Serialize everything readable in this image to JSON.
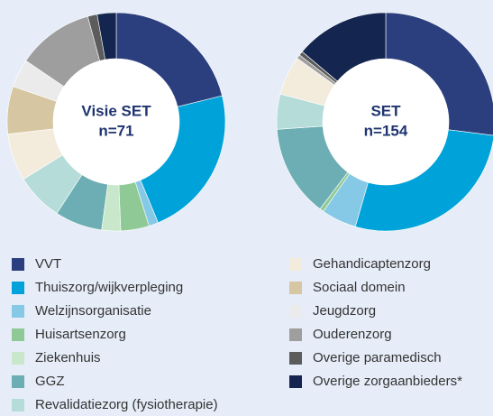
{
  "legend": {
    "categories": [
      "VVT",
      "Thuiszorg/wijkverpleging",
      "Welzijnsorganisatie",
      "Huisartsenzorg",
      "Ziekenhuis",
      "GGZ",
      "Revalidatiezorg (fysiotherapie)",
      "Gehandicaptenzorg",
      "Sociaal domein",
      "Jeugdzorg",
      "Ouderenzorg",
      "Overige paramedisch",
      "Overige zorgaanbieders*"
    ],
    "colors": [
      "#2b3f7e",
      "#00a3d9",
      "#86c9e6",
      "#8fca96",
      "#c9e8cb",
      "#6caeb3",
      "#b5dcd9",
      "#f3ecdc",
      "#d6c7a2",
      "#ebebeb",
      "#9e9e9e",
      "#5c5c5c",
      "#14264f"
    ]
  },
  "chart_data": [
    {
      "type": "pie",
      "title": "Visie SET",
      "subtitle": "n=71",
      "values": [
        21.1,
        22.5,
        1.4,
        4.2,
        2.8,
        7,
        7,
        7,
        7,
        4.2,
        11.3,
        1.4,
        2.8
      ]
    },
    {
      "type": "pie",
      "title": "SET",
      "subtitle": "n=154",
      "values": [
        27,
        27.5,
        5.2,
        0.6,
        0,
        13.6,
        5.2,
        5.8,
        0,
        0,
        0.6,
        0.6,
        13.9
      ]
    }
  ]
}
